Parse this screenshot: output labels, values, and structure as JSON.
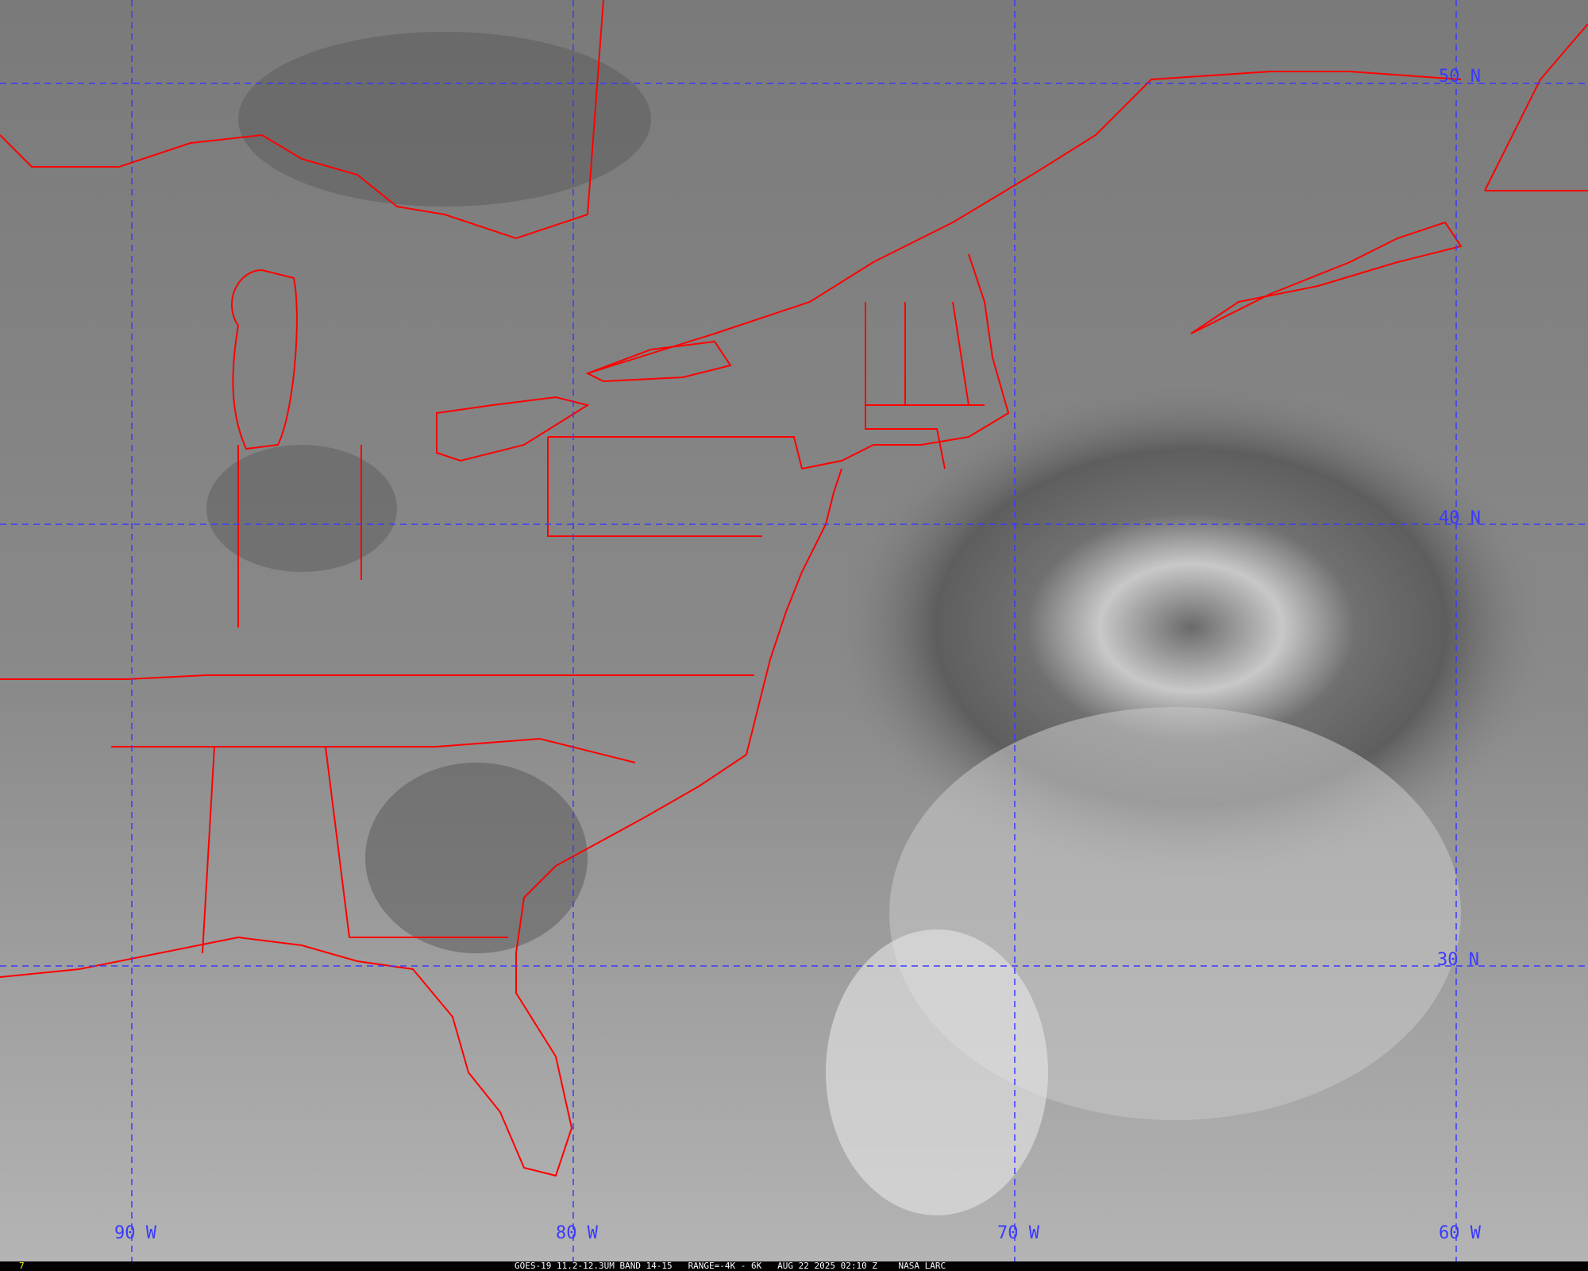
{
  "map": {
    "lat_labels": [
      "50 N",
      "40 N",
      "30 N"
    ],
    "lon_labels": [
      "90 W",
      "80 W",
      "70 W",
      "60 W"
    ],
    "colors": {
      "borders": "#ff0000",
      "grid": "#3a3aff",
      "frame_number": "#ffff00"
    }
  },
  "caption": {
    "frame_number": "7",
    "satellite": "GOES-19 11.2-12.3UM BAND 14-15",
    "range": "RANGE=-4K - 6K",
    "datetime": "AUG 22 2025 02:10 Z",
    "credit": "NASA LARC"
  }
}
